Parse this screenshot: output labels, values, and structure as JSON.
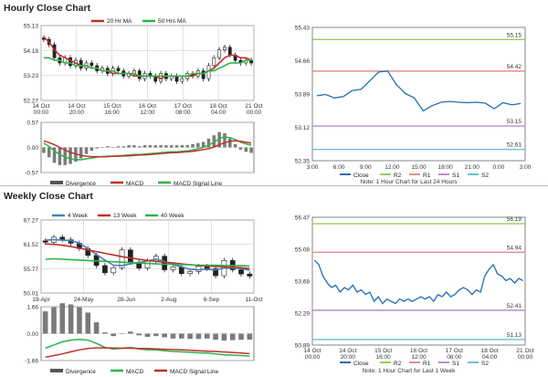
{
  "sections": {
    "hourly_title": "Hourly Close Chart",
    "weekly_title": "Weekly Close Chart"
  },
  "chart_data": [
    {
      "id": "hourly_price",
      "type": "candlestick",
      "legend": [
        "20 Hr MA",
        "50 Hrs MA"
      ],
      "y_ticks": [
        "55.13",
        "54.18",
        "53.23",
        "52.27"
      ],
      "ylim": [
        52.27,
        55.13
      ],
      "x_ticks": [
        {
          "d": "14 Oct",
          "t": "00:00"
        },
        {
          "d": "14 Oct",
          "t": "20:00"
        },
        {
          "d": "15 Oct",
          "t": "16:00"
        },
        {
          "d": "16 Oct",
          "t": "12:00"
        },
        {
          "d": "17 Oct",
          "t": "08:00"
        },
        {
          "d": "18 Oct",
          "t": "04:00"
        },
        {
          "d": "21 Oct",
          "t": "00:00"
        }
      ],
      "close": [
        54.6,
        54.4,
        53.9,
        53.7,
        53.9,
        53.6,
        53.8,
        53.5,
        53.7,
        53.6,
        53.4,
        53.5,
        53.3,
        53.5,
        53.4,
        53.2,
        53.3,
        53.4,
        53.1,
        53.3,
        53.2,
        53.0,
        53.3,
        53.1,
        53.2,
        53.0,
        53.1,
        53.3,
        53.2,
        53.4,
        53.1,
        53.6,
        53.9,
        54.2,
        54.3,
        54.0,
        53.8,
        53.7,
        53.8,
        53.7
      ],
      "ma20": [
        54.7,
        54.5,
        54.2,
        54.0,
        53.9,
        53.8,
        53.7,
        53.6,
        53.6,
        53.5,
        53.5,
        53.4,
        53.4,
        53.3,
        53.3,
        53.3,
        53.3,
        53.2,
        53.2,
        53.2,
        53.2,
        53.2,
        53.1,
        53.2,
        53.2,
        53.2,
        53.2,
        53.2,
        53.2,
        53.3,
        53.3,
        53.4,
        53.5,
        53.7,
        53.9,
        54.0,
        54.0,
        53.9,
        53.9,
        53.8
      ],
      "ma50": [
        53.9,
        53.9,
        53.8,
        53.8,
        53.7,
        53.7,
        53.6,
        53.6,
        53.6,
        53.5,
        53.5,
        53.4,
        53.4,
        53.4,
        53.3,
        53.3,
        53.3,
        53.3,
        53.2,
        53.2,
        53.2,
        53.2,
        53.2,
        53.2,
        53.2,
        53.2,
        53.2,
        53.2,
        53.3,
        53.3,
        53.3,
        53.4,
        53.4,
        53.5,
        53.6,
        53.7,
        53.7,
        53.7,
        53.8,
        53.8
      ]
    },
    {
      "id": "hourly_macd",
      "type": "macd",
      "y_ticks": [
        "0.57",
        "0.00",
        "-0.57"
      ],
      "ylim": [
        -0.57,
        0.57
      ],
      "legend": [
        "Divergence",
        "MACD",
        "MACD Signal Line"
      ],
      "macd": [
        0.1,
        0.02,
        -0.08,
        -0.16,
        -0.22,
        -0.26,
        -0.28,
        -0.28,
        -0.26,
        -0.24,
        -0.22,
        -0.21,
        -0.2,
        -0.2,
        -0.19,
        -0.18,
        -0.17,
        -0.16,
        -0.16,
        -0.15,
        -0.14,
        -0.13,
        -0.12,
        -0.11,
        -0.1,
        -0.1,
        -0.09,
        -0.08,
        -0.06,
        -0.03,
        0.0,
        0.05,
        0.12,
        0.2,
        0.24,
        0.22,
        0.18,
        0.12,
        0.08,
        0.05
      ],
      "signal": [
        0.15,
        0.11,
        0.06,
        0.0,
        -0.06,
        -0.11,
        -0.15,
        -0.18,
        -0.2,
        -0.21,
        -0.21,
        -0.21,
        -0.21,
        -0.2,
        -0.2,
        -0.19,
        -0.19,
        -0.18,
        -0.17,
        -0.17,
        -0.16,
        -0.15,
        -0.14,
        -0.13,
        -0.12,
        -0.12,
        -0.11,
        -0.1,
        -0.09,
        -0.07,
        -0.05,
        -0.03,
        0.01,
        0.06,
        0.11,
        0.14,
        0.15,
        0.14,
        0.12,
        0.1
      ]
    },
    {
      "id": "hourly_24h",
      "type": "line",
      "y_ticks": [
        "55.43",
        "54.66",
        "53.89",
        "53.12",
        "52.35"
      ],
      "ylim": [
        52.35,
        55.43
      ],
      "x_ticks": [
        "3:00",
        "6:00",
        "9:00",
        "12:00",
        "15:00",
        "18:00",
        "21:00",
        "0:00",
        "3:00"
      ],
      "levels": [
        {
          "name": "R2",
          "value": 55.15,
          "label": "55.15",
          "color": "#9acb5a"
        },
        {
          "name": "R1",
          "value": 54.42,
          "label": "54.42",
          "color": "#e89090"
        },
        {
          "name": "S1",
          "value": 53.15,
          "label": "53.15",
          "color": "#b58fd0"
        },
        {
          "name": "S2",
          "value": 52.61,
          "label": "52.61",
          "color": "#6cc0d0"
        }
      ],
      "legend": [
        "Close",
        "R2",
        "R1",
        "S1",
        "S2"
      ],
      "note": "Note: 1 Hour Chart for Last 24 Hours",
      "close": [
        53.85,
        53.88,
        53.8,
        53.83,
        53.97,
        54.0,
        54.2,
        54.4,
        54.42,
        54.1,
        53.9,
        53.8,
        53.5,
        53.62,
        53.7,
        53.72,
        53.7,
        53.69,
        53.7,
        53.68,
        53.55,
        53.69,
        53.64,
        53.67
      ]
    },
    {
      "id": "weekly_price",
      "type": "candlestick",
      "legend": [
        "4 Week",
        "13 Week",
        "40 Week"
      ],
      "y_ticks": [
        "67.27",
        "61.52",
        "55.77",
        "50.01"
      ],
      "ylim": [
        50.01,
        67.27
      ],
      "x_ticks": [
        "19-Apr",
        "24-May",
        "28-Jun",
        "2-Aug",
        "6-Sep",
        "11-Oct"
      ],
      "close": [
        62.0,
        63.2,
        62.6,
        61.8,
        60.5,
        58.9,
        56.5,
        54.8,
        56.0,
        60.2,
        57.3,
        55.9,
        57.6,
        58.7,
        55.5,
        56.2,
        54.6,
        55.1,
        56.3,
        55.8,
        54.1,
        57.7,
        55.5,
        54.5,
        54.0
      ],
      "ma4": [
        62.5,
        62.6,
        62.5,
        62.4,
        61.8,
        60.5,
        59.1,
        57.8,
        56.6,
        56.5,
        56.9,
        57.2,
        57.6,
        58.0,
        57.5,
        56.7,
        56.2,
        55.6,
        55.5,
        55.6,
        55.5,
        55.9,
        55.9,
        55.8,
        55.4
      ],
      "ma13": [
        61.6,
        61.5,
        61.3,
        61.0,
        60.6,
        60.2,
        59.8,
        59.4,
        59.0,
        58.6,
        58.3,
        58.0,
        57.7,
        57.5,
        57.3,
        57.1,
        56.9,
        56.7,
        56.5,
        56.4,
        56.3,
        56.2,
        56.1,
        56.0,
        55.8
      ],
      "ma40": [
        58.0,
        58.1,
        58.0,
        57.9,
        57.8,
        57.7,
        57.6,
        57.5,
        57.4,
        57.3,
        57.2,
        57.1,
        57.0,
        56.9,
        56.8,
        56.8,
        56.7,
        56.7,
        56.6,
        56.6,
        56.6,
        56.5,
        56.5,
        56.5,
        56.4
      ]
    },
    {
      "id": "weekly_macd",
      "type": "macd",
      "y_ticks": [
        "1.66",
        "0.00",
        "-1.66"
      ],
      "ylim": [
        -1.66,
        1.66
      ],
      "legend": [
        "Divergence",
        "MACD",
        "MACD Signal Line"
      ],
      "macd": [
        -0.9,
        -0.7,
        -0.5,
        -0.4,
        -0.35,
        -0.4,
        -0.6,
        -0.85,
        -0.95,
        -0.9,
        -0.85,
        -0.95,
        -1.0,
        -1.0,
        -1.05,
        -1.1,
        -1.12,
        -1.15,
        -1.18,
        -1.2,
        -1.25,
        -1.3,
        -1.32,
        -1.35,
        -1.38
      ],
      "signal": [
        -1.45,
        -1.35,
        -1.25,
        -1.12,
        -1.0,
        -0.92,
        -0.88,
        -0.88,
        -0.89,
        -0.9,
        -0.9,
        -0.91,
        -0.92,
        -0.94,
        -0.96,
        -0.98,
        -1.0,
        -1.02,
        -1.05,
        -1.08,
        -1.1,
        -1.13,
        -1.16,
        -1.2,
        -1.23
      ]
    },
    {
      "id": "weekly_1w",
      "type": "line",
      "y_ticks": [
        "56.47",
        "55.08",
        "53.68",
        "52.29",
        "50.89"
      ],
      "ylim": [
        50.89,
        56.47
      ],
      "x_ticks": [
        {
          "d": "14 Oct",
          "t": "00:00"
        },
        {
          "d": "14 Oct",
          "t": "20:00"
        },
        {
          "d": "15 Oct",
          "t": "16:00"
        },
        {
          "d": "16 Oct",
          "t": "12:00"
        },
        {
          "d": "17 Oct",
          "t": "08:00"
        },
        {
          "d": "18 Oct",
          "t": "04:00"
        },
        {
          "d": "21 Oct",
          "t": "00:00"
        }
      ],
      "levels": [
        {
          "name": "R2",
          "value": 56.19,
          "label": "56.19",
          "color": "#9acb5a"
        },
        {
          "name": "R1",
          "value": 54.94,
          "label": "54.94",
          "color": "#e89090"
        },
        {
          "name": "S1",
          "value": 52.41,
          "label": "52.41",
          "color": "#b58fd0"
        },
        {
          "name": "S2",
          "value": 51.13,
          "label": "51.13",
          "color": "#6cc0d0"
        }
      ],
      "legend": [
        "Close",
        "R2",
        "R1",
        "S1",
        "S2"
      ],
      "note": "Note: 1 Hour Chart for Last 1 Week",
      "close": [
        54.6,
        54.4,
        53.9,
        53.6,
        53.4,
        53.5,
        53.2,
        53.4,
        53.3,
        53.5,
        53.2,
        53.3,
        53.1,
        53.2,
        52.8,
        53.0,
        52.7,
        52.9,
        52.8,
        52.7,
        52.9,
        52.8,
        52.9,
        52.8,
        52.9,
        53.0,
        52.9,
        53.0,
        52.8,
        53.1,
        53.0,
        53.2,
        53.0,
        53.1,
        53.3,
        53.4,
        53.3,
        53.1,
        53.3,
        53.2,
        53.9,
        54.2,
        54.4,
        54.0,
        53.9,
        53.7,
        53.8,
        53.6,
        53.8,
        53.7
      ]
    }
  ]
}
